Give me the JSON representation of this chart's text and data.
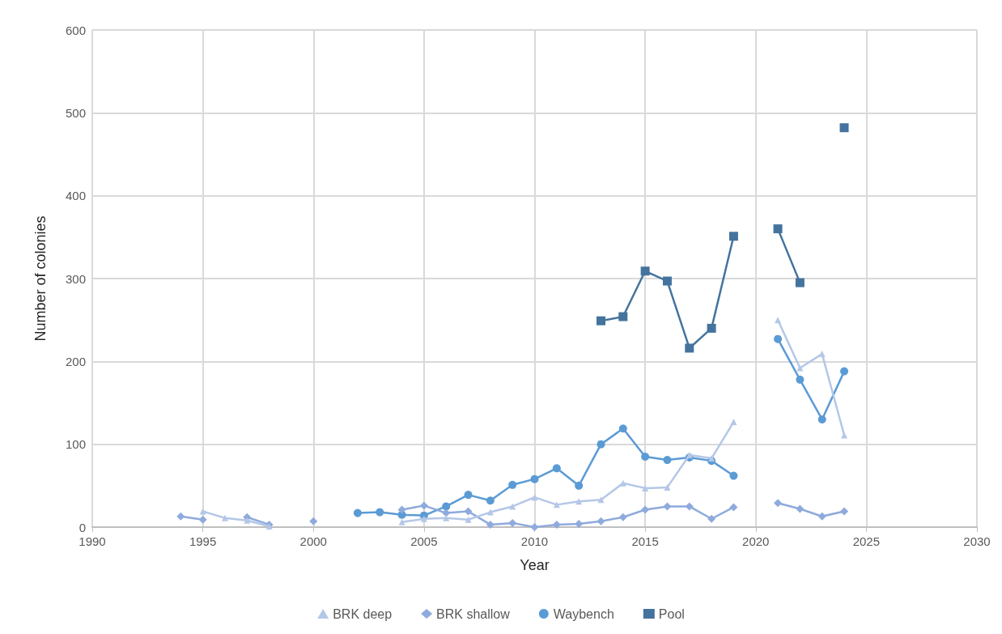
{
  "chart_data": {
    "type": "line",
    "xlabel": "Year",
    "ylabel": "Number of colonies",
    "x": [
      1994,
      1995,
      1996,
      1997,
      1998,
      1999,
      2000,
      2001,
      2002,
      2003,
      2004,
      2005,
      2006,
      2007,
      2008,
      2009,
      2010,
      2011,
      2012,
      2013,
      2014,
      2015,
      2016,
      2017,
      2018,
      2019,
      2020,
      2021,
      2022,
      2023,
      2024
    ],
    "series": [
      {
        "name": "BRK deep",
        "color": "#b4c7e7",
        "marker": "triangle",
        "values": [
          null,
          19,
          11,
          8,
          1,
          null,
          null,
          null,
          null,
          null,
          6,
          10,
          11,
          9,
          18,
          25,
          36,
          27,
          31,
          33,
          53,
          47,
          48,
          87,
          83,
          127,
          null,
          250,
          192,
          209,
          111
        ]
      },
      {
        "name": "BRK shallow",
        "color": "#8faadc",
        "marker": "diamond",
        "values": [
          13,
          9,
          null,
          12,
          3,
          null,
          7,
          null,
          null,
          null,
          21,
          26,
          17,
          19,
          3,
          5,
          0,
          3,
          4,
          7,
          12,
          21,
          25,
          25,
          10,
          24,
          null,
          29,
          22,
          13,
          19
        ]
      },
      {
        "name": "Waybench",
        "color": "#5b9bd5",
        "marker": "circle",
        "values": [
          null,
          null,
          null,
          null,
          null,
          null,
          null,
          null,
          17,
          18,
          15,
          14,
          25,
          39,
          32,
          51,
          58,
          71,
          50,
          100,
          119,
          85,
          81,
          84,
          80,
          62,
          null,
          227,
          178,
          130,
          188
        ]
      },
      {
        "name": "Pool",
        "color": "#44739e",
        "marker": "square",
        "values": [
          null,
          null,
          null,
          null,
          null,
          null,
          null,
          null,
          null,
          null,
          null,
          null,
          null,
          null,
          null,
          null,
          null,
          null,
          null,
          249,
          254,
          309,
          297,
          216,
          240,
          351,
          null,
          360,
          295,
          null,
          482
        ]
      }
    ],
    "xlim": [
      1990,
      2030
    ],
    "xticks": [
      1990,
      1995,
      2000,
      2005,
      2010,
      2015,
      2020,
      2025,
      2030
    ],
    "ylim": [
      0,
      600
    ],
    "yticks": [
      0,
      100,
      200,
      300,
      400,
      500,
      600
    ],
    "grid": true,
    "legend": "bottom",
    "line_style": "solid"
  }
}
